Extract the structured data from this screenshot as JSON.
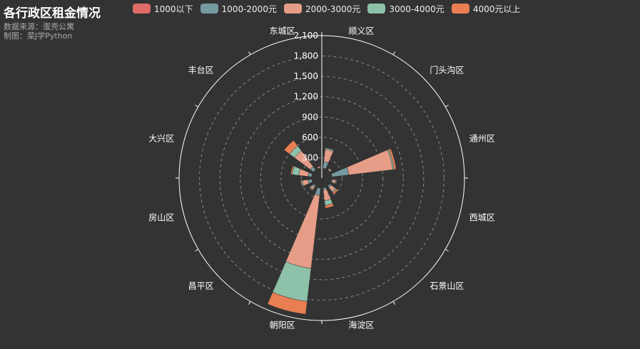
{
  "chart_data": {
    "type": "polar-bar",
    "title": "各行政区租金情况",
    "subtitle": "数据来源：蛋壳公寓\n制图：菜J学Python",
    "legend": [
      "1000以下",
      "1000-2000元",
      "2000-3000元",
      "3000-4000元",
      "4000元以上"
    ],
    "colors": [
      "#dd6b66",
      "#759aa0",
      "#e69d87",
      "#8dc1a9",
      "#ea7e53"
    ],
    "categories": [
      "顺义区",
      "门头沟区",
      "通州区",
      "西城区",
      "石景山区",
      "海淀区",
      "朝阳区",
      "昌平区",
      "房山区",
      "大兴区",
      "丰台区",
      "东城区"
    ],
    "radius_axis": {
      "min": 0,
      "max": 2100,
      "interval": 300,
      "tick_labels": [
        "0",
        "300",
        "600",
        "900",
        "1,200",
        "1,500",
        "1,800",
        "2,100"
      ]
    },
    "series": [
      {
        "name": "1000以下",
        "values": [
          0,
          0,
          5,
          0,
          0,
          0,
          5,
          0,
          0,
          5,
          5,
          0
        ]
      },
      {
        "name": "1000-2000元",
        "values": [
          100,
          10,
          250,
          20,
          30,
          30,
          110,
          30,
          60,
          50,
          60,
          5
        ]
      },
      {
        "name": "2000-3000元",
        "values": [
          180,
          20,
          650,
          40,
          70,
          160,
          1080,
          30,
          80,
          140,
          290,
          20
        ]
      },
      {
        "name": "3000-4000元",
        "values": [
          20,
          5,
          20,
          10,
          20,
          70,
          490,
          15,
          20,
          100,
          90,
          5
        ]
      },
      {
        "name": "4000元以上",
        "values": [
          5,
          5,
          30,
          10,
          30,
          40,
          190,
          10,
          10,
          20,
          100,
          5
        ]
      }
    ]
  }
}
